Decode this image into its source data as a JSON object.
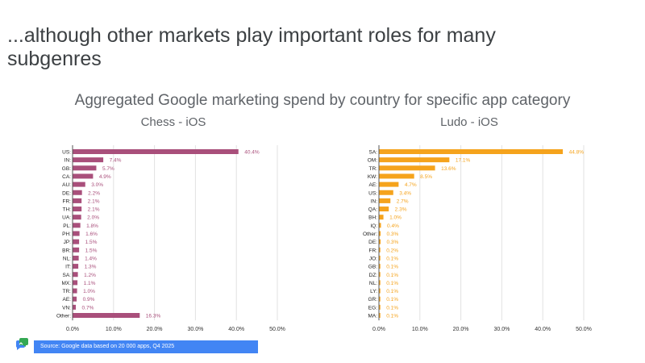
{
  "slide": {
    "title": "...although other markets play important roles for many subgenres",
    "subtitle": "Aggregated Google marketing spend by country for specific app category",
    "source": "Source: Google data based on 20 000 apps, Q4 2025"
  },
  "chart_data": [
    {
      "type": "bar",
      "orientation": "horizontal",
      "title": "Chess - iOS",
      "color": "#a94f7b",
      "categories": [
        "US",
        "IN",
        "GB",
        "CA",
        "AU",
        "DE",
        "FR",
        "TH",
        "UA",
        "PL",
        "PH",
        "JP",
        "BR",
        "NL",
        "IT",
        "SA",
        "MX",
        "TR",
        "AE",
        "VN",
        "Other"
      ],
      "values": [
        40.4,
        7.4,
        5.7,
        4.9,
        3.0,
        2.2,
        2.1,
        2.1,
        2.0,
        1.8,
        1.6,
        1.5,
        1.5,
        1.4,
        1.3,
        1.2,
        1.1,
        1.0,
        0.9,
        0.7,
        16.3
      ],
      "value_labels": [
        "40.4%",
        "7.4%",
        "5.7%",
        "4.9%",
        "3.0%",
        "2.2%",
        "2.1%",
        "2.1%",
        "2.0%",
        "1.8%",
        "1.6%",
        "1.5%",
        "1.5%",
        "1.4%",
        "1.3%",
        "1.2%",
        "1.1%",
        "1.0%",
        "0.9%",
        "0.7%",
        "16.3%"
      ],
      "xlim": [
        0,
        50
      ],
      "xticks": [
        "0.0%",
        "10.0%",
        "20.0%",
        "30.0%",
        "40.0%",
        "50.0%"
      ],
      "grid": true
    },
    {
      "type": "bar",
      "orientation": "horizontal",
      "title": "Ludo - iOS",
      "color": "#f5a31c",
      "categories": [
        "SA",
        "OM",
        "TR",
        "KW",
        "AE",
        "US",
        "IN",
        "QA",
        "BH",
        "IQ",
        "Other",
        "DE",
        "FR",
        "JO",
        "GB",
        "DZ",
        "NL",
        "LY",
        "GR",
        "EG",
        "MA"
      ],
      "values": [
        44.8,
        17.1,
        13.6,
        8.5,
        4.7,
        3.4,
        2.7,
        2.3,
        1.0,
        0.4,
        0.3,
        0.3,
        0.2,
        0.1,
        0.1,
        0.1,
        0.1,
        0.1,
        0.1,
        0.1,
        0.1
      ],
      "value_labels": [
        "44.8%",
        "17.1%",
        "13.6%",
        "8.5%",
        "4.7%",
        "3.4%",
        "2.7%",
        "2.3%",
        "1.0%",
        "0.4%",
        "0.3%",
        "0.3%",
        "0.2%",
        "0.1%",
        "0.1%",
        "0.1%",
        "0.1%",
        "0.1%",
        "0.1%",
        "0.1%",
        "0.1%"
      ],
      "xlim": [
        0,
        50
      ],
      "xticks": [
        "0.0%",
        "10.0%",
        "20.0%",
        "30.0%",
        "40.0%",
        "50.0%"
      ],
      "grid": true
    }
  ],
  "logo": {
    "icon": "google-ads-chat-logo-icon",
    "colors": [
      "#4285f4",
      "#34a853"
    ]
  }
}
